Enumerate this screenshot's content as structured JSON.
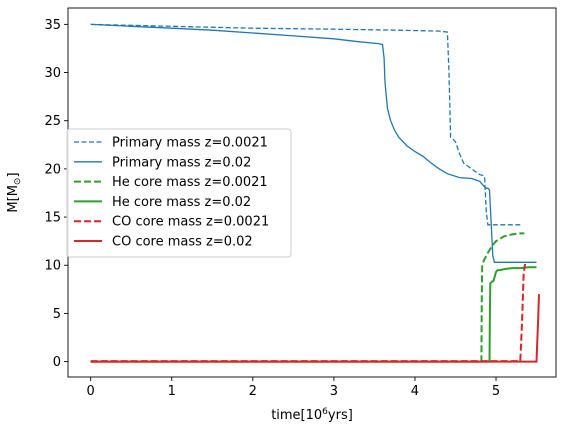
{
  "chart_data": {
    "type": "line",
    "title": "",
    "xlabel": "time[10^6yrs]",
    "ylabel": "M[M_sun]",
    "xlim": [
      -0.28,
      5.74
    ],
    "ylim": [
      -1.6,
      36.7
    ],
    "xticks": [
      0,
      1,
      2,
      3,
      4,
      5
    ],
    "yticks": [
      0,
      5,
      10,
      15,
      20,
      25,
      30,
      35
    ],
    "legend_position": "center-left",
    "grid": false,
    "series": [
      {
        "name": "Primary mass z=0.0021",
        "color": "#1f77b4",
        "dash": "dashed",
        "width": "thin",
        "x": [
          0,
          1,
          2,
          3,
          3.8,
          4.3,
          4.4,
          4.42,
          4.44,
          4.46,
          4.5,
          4.55,
          4.6,
          4.7,
          4.8,
          4.85,
          4.86,
          4.88,
          4.9,
          5.0,
          5.3
        ],
        "y": [
          35,
          34.8,
          34.6,
          34.5,
          34.4,
          34.3,
          34.2,
          30,
          23.3,
          23.2,
          22.8,
          21.6,
          20.6,
          20.0,
          19.4,
          19.3,
          19.0,
          15.5,
          14.2,
          14.2,
          14.2
        ]
      },
      {
        "name": "Primary mass z=0.02",
        "color": "#1f77b4",
        "dash": "solid",
        "width": "thin",
        "x": [
          0,
          0.5,
          1,
          1.5,
          2,
          2.5,
          3,
          3.3,
          3.55,
          3.6,
          3.62,
          3.63,
          3.66,
          3.7,
          3.75,
          3.8,
          3.9,
          4.0,
          4.1,
          4.2,
          4.3,
          4.4,
          4.55,
          4.7,
          4.8,
          4.85,
          4.88,
          4.9,
          4.92,
          4.94,
          4.96,
          4.98,
          5.2,
          5.5
        ],
        "y": [
          35,
          34.8,
          34.6,
          34.4,
          34.1,
          33.8,
          33.5,
          33.2,
          33.0,
          32.9,
          31.5,
          29.0,
          26.3,
          25.0,
          24.0,
          23.3,
          22.4,
          21.8,
          21.3,
          20.6,
          20.0,
          19.5,
          19.1,
          19.0,
          18.7,
          18.2,
          18.0,
          18.0,
          17.8,
          14.5,
          11.0,
          10.3,
          10.3,
          10.3
        ]
      },
      {
        "name": "He core mass z=0.0021",
        "color": "#2ca02c",
        "dash": "dashed",
        "width": "thick",
        "x": [
          0,
          1,
          2,
          3,
          4,
          4.82,
          4.825,
          4.83,
          4.85,
          4.9,
          4.95,
          5.0,
          5.1,
          5.2,
          5.3,
          5.35
        ],
        "y": [
          0,
          0,
          0,
          0,
          0,
          0,
          7.0,
          10.0,
          10.5,
          11.3,
          12.0,
          12.5,
          13.0,
          13.2,
          13.3,
          13.3
        ]
      },
      {
        "name": "He core mass z=0.02",
        "color": "#2ca02c",
        "dash": "solid",
        "width": "thick",
        "x": [
          0,
          1,
          2,
          3,
          4,
          4.92,
          4.925,
          4.93,
          4.95,
          4.97,
          4.99,
          5.0,
          5.02,
          5.05,
          5.1,
          5.2,
          5.3,
          5.4,
          5.5
        ],
        "y": [
          0,
          0,
          0,
          0,
          0,
          0,
          5.0,
          8.1,
          8.3,
          8.4,
          9.0,
          9.3,
          9.5,
          9.5,
          9.6,
          9.7,
          9.7,
          9.8,
          9.8
        ]
      },
      {
        "name": "CO core mass z=0.0021",
        "color": "#d62728",
        "dash": "dashed",
        "width": "thick",
        "x": [
          0,
          1,
          2,
          3,
          4,
          5,
          5.3,
          5.32,
          5.34,
          5.36
        ],
        "y": [
          0.05,
          0.05,
          0.05,
          0.05,
          0.05,
          0.05,
          0.05,
          4.0,
          9.0,
          10.3
        ]
      },
      {
        "name": "CO core mass z=0.02",
        "color": "#d62728",
        "dash": "solid",
        "width": "thick",
        "x": [
          0,
          1,
          2,
          3,
          4,
          5,
          5.5,
          5.52,
          5.53
        ],
        "y": [
          0,
          0,
          0,
          0,
          0,
          0,
          0,
          4.5,
          7.0
        ]
      }
    ]
  }
}
